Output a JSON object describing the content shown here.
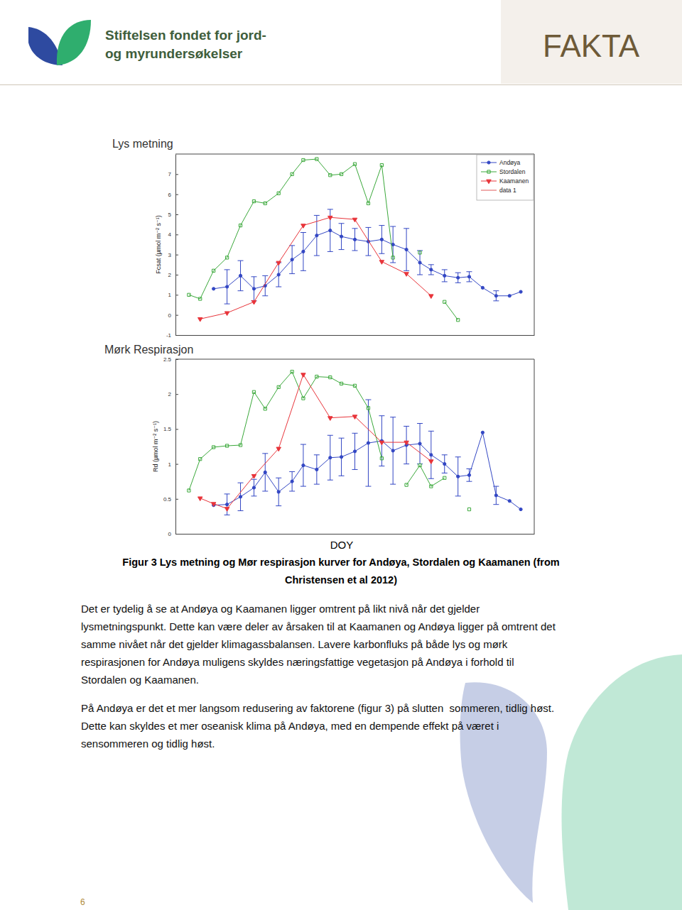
{
  "header": {
    "org_name": [
      "Stiftelsen fondet for jord-",
      "og myrundersøkelser"
    ],
    "label": "FAKTA"
  },
  "chart_data": [
    {
      "type": "line",
      "title": "Lys metning",
      "y_label": "Fcsat (µmol m⁻² s⁻¹)",
      "xlim": [
        140,
        300
      ],
      "ylim": [
        -1,
        8
      ],
      "yticks": [
        -1,
        0,
        1,
        2,
        3,
        4,
        5,
        6,
        7
      ],
      "tick_labels": "y",
      "legend": "upper right",
      "series": [
        {
          "name": "Andøya",
          "color": "#3347c4",
          "marker": "circle",
          "line_style": "solid",
          "x": [
            157,
            163,
            169,
            175,
            180,
            186,
            192,
            197,
            203,
            209,
            214,
            220,
            226,
            232,
            237,
            243,
            249,
            254,
            260,
            266,
            271,
            277,
            283,
            289,
            294
          ],
          "values": [
            1.3,
            1.4,
            1.95,
            1.3,
            1.45,
            2.0,
            2.75,
            3.15,
            3.95,
            4.2,
            3.9,
            3.75,
            3.65,
            3.75,
            3.5,
            3.25,
            2.6,
            2.25,
            1.95,
            1.85,
            1.9,
            1.35,
            0.95,
            0.95,
            1.15
          ],
          "errors": [
            null,
            0.85,
            0.75,
            0.6,
            0.5,
            0.6,
            0.7,
            0.95,
            1.0,
            1.05,
            0.65,
            0.55,
            0.7,
            0.7,
            0.9,
            1.05,
            0.6,
            0.25,
            0.3,
            0.25,
            0.25,
            null,
            0.25,
            null,
            null
          ]
        },
        {
          "name": "Stordalen",
          "color": "#3aa83a",
          "marker": "square",
          "line_style": "solid",
          "x": [
            146,
            151,
            157,
            163,
            169,
            175,
            180,
            186,
            192,
            197,
            203,
            209,
            214,
            220,
            226,
            232,
            237,
            243,
            249,
            254,
            260,
            266
          ],
          "values": [
            1.0,
            0.8,
            2.2,
            2.85,
            4.45,
            5.65,
            5.55,
            6.05,
            7.0,
            7.7,
            7.75,
            6.95,
            7.0,
            7.5,
            5.55,
            7.45,
            2.85,
            null,
            3.1,
            null,
            0.65,
            -0.25
          ]
        },
        {
          "name": "Kaamanen",
          "color": "#e8343a",
          "marker": "triangle-down",
          "line_style": "solid",
          "x": [
            151,
            163,
            175,
            186,
            197,
            209,
            220,
            232,
            243,
            254
          ],
          "values": [
            -0.2,
            0.1,
            0.65,
            2.6,
            4.45,
            4.85,
            4.75,
            2.65,
            2.05,
            0.95
          ]
        },
        {
          "name": "data 1",
          "color": "#e05a5a",
          "marker": "none",
          "line_style": "solid",
          "x": [],
          "values": []
        }
      ]
    },
    {
      "type": "line",
      "title": "Mørk Respirasjon",
      "y_label": "Rd (µmol m⁻² s⁻¹)",
      "x_label": "DOY",
      "xlim": [
        140,
        300
      ],
      "ylim": [
        0,
        2.5
      ],
      "yticks": [
        0,
        0.5,
        1,
        1.5,
        2,
        2.5
      ],
      "tick_labels": "y",
      "series": [
        {
          "name": "Andøya",
          "color": "#3347c4",
          "marker": "circle",
          "line_style": "solid",
          "x": [
            157,
            163,
            169,
            175,
            180,
            186,
            192,
            197,
            203,
            209,
            214,
            220,
            226,
            232,
            237,
            243,
            249,
            254,
            260,
            266,
            271,
            277,
            283,
            289,
            294
          ],
          "values": [
            0.41,
            0.42,
            0.53,
            0.66,
            0.88,
            0.6,
            0.75,
            0.98,
            0.92,
            1.09,
            1.1,
            1.18,
            1.3,
            1.33,
            1.19,
            1.27,
            1.29,
            1.13,
            1.0,
            0.82,
            0.84,
            1.45,
            0.55,
            0.47,
            0.35
          ],
          "errors": [
            null,
            0.15,
            0.2,
            0.12,
            0.27,
            0.2,
            0.14,
            0.3,
            0.21,
            0.32,
            0.27,
            0.26,
            0.62,
            0.36,
            0.48,
            0.27,
            0.29,
            0.34,
            0.13,
            0.28,
            0.09,
            null,
            0.13,
            null,
            null
          ]
        },
        {
          "name": "Stordalen",
          "color": "#3aa83a",
          "marker": "square",
          "line_style": "solid",
          "x": [
            146,
            151,
            157,
            163,
            169,
            175,
            180,
            186,
            192,
            197,
            203,
            209,
            214,
            220,
            226,
            232,
            237,
            243,
            249,
            254,
            260,
            266,
            271
          ],
          "values": [
            0.62,
            1.07,
            1.24,
            1.26,
            1.27,
            2.03,
            1.79,
            2.1,
            2.32,
            1.94,
            2.25,
            2.24,
            2.15,
            2.12,
            1.8,
            1.08,
            null,
            0.7,
            0.98,
            0.68,
            0.8,
            null,
            0.35
          ]
        },
        {
          "name": "Kaamanen",
          "color": "#e8343a",
          "marker": "triangle-down",
          "line_style": "solid",
          "x": [
            151,
            157,
            163,
            175,
            186,
            197,
            209,
            220,
            232,
            243,
            254
          ],
          "values": [
            0.51,
            0.43,
            0.36,
            0.83,
            1.22,
            2.28,
            1.66,
            1.68,
            1.31,
            1.31,
            1.04
          ]
        }
      ]
    }
  ],
  "caption": [
    "Figur 3 Lys metning og Mør respirasjon kurver for Andøya, Stordalen og Kaamanen (from",
    "Christensen et al 2012)"
  ],
  "paragraphs": [
    [
      "Det er tydelig å se at Andøya og Kaamanen ligger omtrent på likt nivå når det gjelder",
      "lysmetningspunkt. Dette kan være deler av årsaken til at Kaamanen og Andøya ligger på omtrent det",
      "samme nivået når det gjelder klimagassbalansen. Lavere karbonfluks på både lys og mørk",
      "respirasjonen for Andøya muligens skyldes næringsfattige vegetasjon på Andøya i forhold til",
      "Stordalen og Kaamanen."
    ],
    [
      "På Andøya er det et mer langsom redusering av faktorene (figur 3) på slutten  sommeren, tidlig høst.",
      "Dette kan skyldes et mer oseanisk klima på Andøya, med en dempende effekt på været i",
      "sensommeren og tidlig høst."
    ]
  ],
  "page_number": 6
}
